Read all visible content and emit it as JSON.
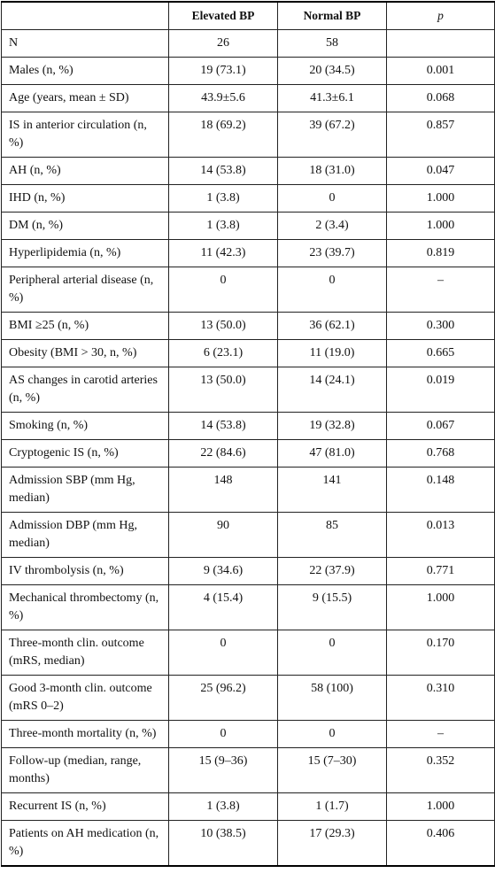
{
  "header": [
    "Elevated BP",
    "Normal BP",
    "p"
  ],
  "rows": [
    [
      "N",
      "26",
      "58",
      ""
    ],
    [
      "Males (n, %)",
      "19 (73.1)",
      "20 (34.5)",
      "0.001"
    ],
    [
      "Age (years, mean ± SD)",
      "43.9±5.6",
      "41.3±6.1",
      "0.068"
    ],
    [
      "IS in anterior circulation (n, %)",
      "18 (69.2)",
      "39 (67.2)",
      "0.857"
    ],
    [
      "AH (n, %)",
      "14 (53.8)",
      "18 (31.0)",
      "0.047"
    ],
    [
      "IHD (n, %)",
      "1 (3.8)",
      "0",
      "1.000"
    ],
    [
      "DM (n, %)",
      "1 (3.8)",
      "2 (3.4)",
      "1.000"
    ],
    [
      "Hyperlipidemia (n, %)",
      "11 (42.3)",
      "23 (39.7)",
      "0.819"
    ],
    [
      "Peripheral arterial disease (n, %)",
      "0",
      "0",
      "–"
    ],
    [
      "BMI ≥25 (n, %)",
      "13 (50.0)",
      "36 (62.1)",
      "0.300"
    ],
    [
      "Obesity (BMI > 30, n, %)",
      "6 (23.1)",
      "11 (19.0)",
      "0.665"
    ],
    [
      "AS changes in carotid arteries (n, %)",
      "13 (50.0)",
      "14 (24.1)",
      "0.019"
    ],
    [
      "Smoking (n, %)",
      "14 (53.8)",
      "19 (32.8)",
      "0.067"
    ],
    [
      "Cryptogenic IS (n, %)",
      "22 (84.6)",
      "47 (81.0)",
      "0.768"
    ],
    [
      "Admission SBP (mm Hg, median)",
      "148",
      "141",
      "0.148"
    ],
    [
      "Admission DBP (mm Hg, median)",
      "90",
      "85",
      "0.013"
    ],
    [
      "IV thrombolysis (n, %)",
      "9 (34.6)",
      "22 (37.9)",
      "0.771"
    ],
    [
      "Mechanical thrombectomy (n, %)",
      "4 (15.4)",
      "9 (15.5)",
      "1.000"
    ],
    [
      "Three-month clin. outcome (mRS, median)",
      "0",
      "0",
      "0.170"
    ],
    [
      "Good 3-month clin. outcome (mRS 0–2)",
      "25 (96.2)",
      "58 (100)",
      "0.310"
    ],
    [
      "Three-month mortality (n, %)",
      "0",
      "0",
      "–"
    ],
    [
      "Follow-up (median, range, months)",
      "15 (9–36)",
      "15 (7–30)",
      "0.352"
    ],
    [
      "Recurrent IS (n, %)",
      "1 (3.8)",
      "1 (1.7)",
      "1.000"
    ],
    [
      "Patients on AH medication (n, %)",
      "10 (38.5)",
      "17 (29.3)",
      "0.406"
    ]
  ]
}
